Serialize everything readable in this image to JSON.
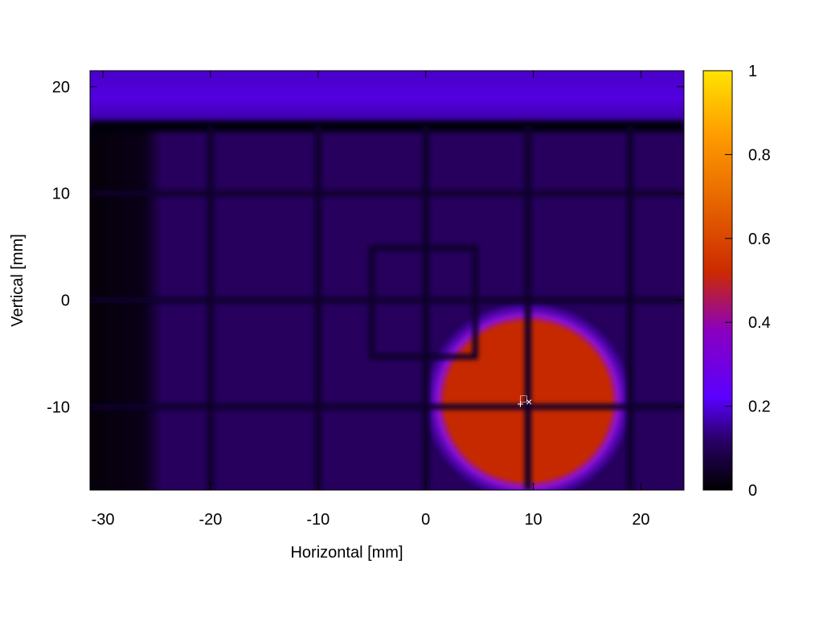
{
  "chart_data": {
    "type": "heatmap",
    "title": "",
    "xlabel": "Horizontal [mm]",
    "ylabel": "Vertical [mm]",
    "xlim": [
      -31.2,
      24.0
    ],
    "ylim": [
      -17.8,
      21.5
    ],
    "xticks": [
      -30,
      -20,
      -10,
      0,
      10,
      20
    ],
    "yticks": [
      -10,
      0,
      10,
      20
    ],
    "colorbar": {
      "range": [
        0,
        1
      ],
      "ticks": [
        0,
        0.2,
        0.4,
        0.6,
        0.8,
        1
      ],
      "colormap": [
        "#000000",
        "#2a0068",
        "#5a00ff",
        "#8a00c0",
        "#cc2a00",
        "#e96a00",
        "#ff9d00",
        "#ffe400"
      ]
    },
    "grid_wires": {
      "vertical_x": [
        -20,
        -10,
        0,
        9.5,
        19
      ],
      "horizontal_y": [
        10,
        0,
        -10
      ],
      "rectangle": {
        "x": [
          -5,
          4.6
        ],
        "y": [
          -5.3,
          4.9
        ]
      }
    },
    "features": {
      "top_band": {
        "y_min": 16.3,
        "y_max": 21.5,
        "level": 0.18
      },
      "left_dark_edge": {
        "x_max": -24.5,
        "level": 0.04
      },
      "background_level": 0.12,
      "beam_spot": {
        "center": [
          9.5,
          -9.5
        ],
        "radius_x": 8.5,
        "radius_y": 8.2,
        "level": 0.48
      }
    },
    "markers": [
      {
        "symbol": "+",
        "x": 8.8,
        "y": -9.7
      },
      {
        "symbol": "□",
        "x": 9.1,
        "y": -9.2
      },
      {
        "symbol": "×",
        "x": 9.6,
        "y": -9.5
      }
    ],
    "colors": {
      "axis": "#000000",
      "background": "#ffffff"
    }
  }
}
